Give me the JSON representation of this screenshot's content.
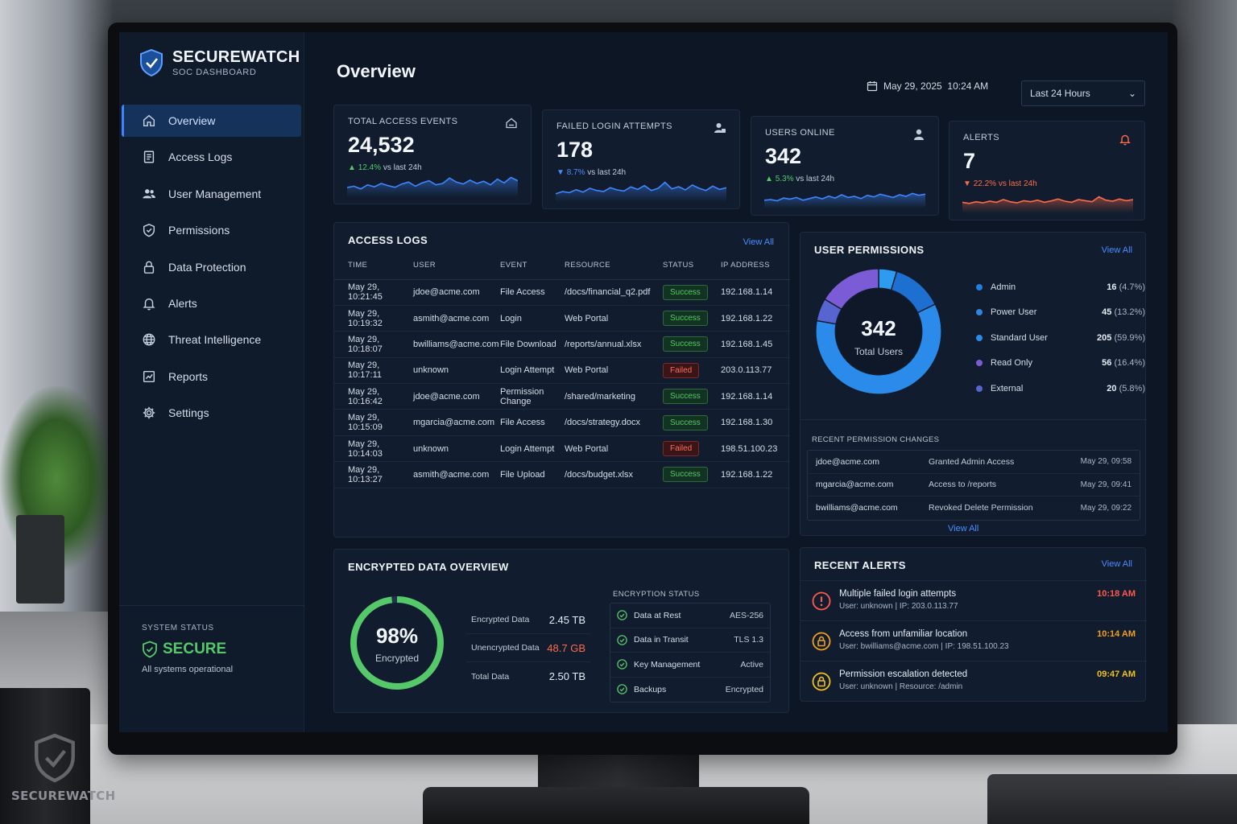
{
  "brand": {
    "title": "SECUREWATCH",
    "subtitle": "SOC DASHBOARD",
    "mug_text": "SECUREWATCH"
  },
  "sidebar": {
    "items": [
      {
        "label": "Overview",
        "icon": "home-icon",
        "active": true
      },
      {
        "label": "Access Logs",
        "icon": "document-icon"
      },
      {
        "label": "User Management",
        "icon": "users-icon"
      },
      {
        "label": "Permissions",
        "icon": "shield-icon"
      },
      {
        "label": "Data Protection",
        "icon": "lock-icon"
      },
      {
        "label": "Alerts",
        "icon": "bell-icon"
      },
      {
        "label": "Threat Intelligence",
        "icon": "globe-icon"
      },
      {
        "label": "Reports",
        "icon": "chart-icon"
      },
      {
        "label": "Settings",
        "icon": "gear-icon"
      }
    ],
    "system_status": {
      "label": "SYSTEM STATUS",
      "state": "SECURE",
      "note": "All systems operational"
    }
  },
  "header": {
    "title": "Overview",
    "date": "May 29, 2025",
    "time": "10:24 AM",
    "range": "Last 24 Hours"
  },
  "stats": [
    {
      "label": "TOTAL ACCESS EVENTS",
      "value": "24,532",
      "delta": "12.4%",
      "delta_suffix": "vs last 24h",
      "direction": "up",
      "icon": "home-icon",
      "spark_color": "#3d86ff",
      "spark": [
        0.35,
        0.4,
        0.3,
        0.45,
        0.38,
        0.5,
        0.42,
        0.36,
        0.48,
        0.55,
        0.4,
        0.52,
        0.6,
        0.45,
        0.5,
        0.7,
        0.55,
        0.48,
        0.62,
        0.5,
        0.58,
        0.45,
        0.66,
        0.52,
        0.72,
        0.6
      ]
    },
    {
      "label": "FAILED LOGIN ATTEMPTS",
      "value": "178",
      "delta": "8.7%",
      "delta_suffix": "vs last 24h",
      "direction": "down",
      "icon": "user-lock-icon",
      "spark_color": "#3d86ff",
      "spark": [
        0.3,
        0.38,
        0.34,
        0.45,
        0.36,
        0.5,
        0.42,
        0.38,
        0.52,
        0.44,
        0.4,
        0.55,
        0.46,
        0.6,
        0.42,
        0.5,
        0.72,
        0.48,
        0.56,
        0.44,
        0.62,
        0.5,
        0.42,
        0.58,
        0.46,
        0.52
      ]
    },
    {
      "label": "USERS ONLINE",
      "value": "342",
      "delta": "5.3%",
      "delta_suffix": "vs last 24h",
      "direction": "up",
      "icon": "user-icon",
      "spark_color": "#3d86ff",
      "spark": [
        0.3,
        0.32,
        0.28,
        0.38,
        0.34,
        0.4,
        0.3,
        0.36,
        0.42,
        0.35,
        0.45,
        0.38,
        0.5,
        0.4,
        0.44,
        0.36,
        0.48,
        0.42,
        0.52,
        0.46,
        0.4,
        0.5,
        0.44,
        0.55,
        0.48,
        0.52
      ]
    },
    {
      "label": "ALERTS",
      "value": "7",
      "delta": "22.2%",
      "delta_suffix": "vs last 24h",
      "direction": "down-red",
      "icon": "bell-icon",
      "spark_color": "#ff6b4a",
      "spark": [
        0.4,
        0.36,
        0.42,
        0.38,
        0.44,
        0.4,
        0.5,
        0.42,
        0.38,
        0.46,
        0.42,
        0.48,
        0.4,
        0.45,
        0.52,
        0.44,
        0.4,
        0.5,
        0.46,
        0.42,
        0.6,
        0.48,
        0.44,
        0.52,
        0.46,
        0.5
      ]
    }
  ],
  "access_logs": {
    "title": "ACCESS LOGS",
    "view_all": "View All",
    "columns": [
      "TIME",
      "USER",
      "EVENT",
      "RESOURCE",
      "STATUS",
      "IP ADDRESS"
    ],
    "rows": [
      {
        "time": "May 29, 10:21:45",
        "user": "jdoe@acme.com",
        "event": "File Access",
        "resource": "/docs/financial_q2.pdf",
        "status": "Success",
        "ip": "192.168.1.14"
      },
      {
        "time": "May 29, 10:19:32",
        "user": "asmith@acme.com",
        "event": "Login",
        "resource": "Web Portal",
        "status": "Success",
        "ip": "192.168.1.22"
      },
      {
        "time": "May 29, 10:18:07",
        "user": "bwilliams@acme.com",
        "event": "File Download",
        "resource": "/reports/annual.xlsx",
        "status": "Success",
        "ip": "192.168.1.45"
      },
      {
        "time": "May 29, 10:17:11",
        "user": "unknown",
        "event": "Login Attempt",
        "resource": "Web Portal",
        "status": "Failed",
        "ip": "203.0.113.77"
      },
      {
        "time": "May 29, 10:16:42",
        "user": "jdoe@acme.com",
        "event": "Permission Change",
        "resource": "/shared/marketing",
        "status": "Success",
        "ip": "192.168.1.14"
      },
      {
        "time": "May 29, 10:15:09",
        "user": "mgarcia@acme.com",
        "event": "File Access",
        "resource": "/docs/strategy.docx",
        "status": "Success",
        "ip": "192.168.1.30"
      },
      {
        "time": "May 29, 10:14:03",
        "user": "unknown",
        "event": "Login Attempt",
        "resource": "Web Portal",
        "status": "Failed",
        "ip": "198.51.100.23"
      },
      {
        "time": "May 29, 10:13:27",
        "user": "asmith@acme.com",
        "event": "File Upload",
        "resource": "/docs/budget.xlsx",
        "status": "Success",
        "ip": "192.168.1.22"
      }
    ]
  },
  "permissions": {
    "title": "USER PERMISSIONS",
    "view_all": "View All",
    "total": "342",
    "total_label": "Total Users",
    "groups": [
      {
        "name": "Admin",
        "count": "16",
        "pct": "(4.7%)",
        "value": 16,
        "color": "#1f7fe8"
      },
      {
        "name": "Power User",
        "count": "45",
        "pct": "(13.2%)",
        "value": 45,
        "color": "#2e86e0"
      },
      {
        "name": "Standard User",
        "count": "205",
        "pct": "(59.9%)",
        "value": 205,
        "color": "#2a8bea"
      },
      {
        "name": "Read Only",
        "count": "56",
        "pct": "(16.4%)",
        "value": 56,
        "color": "#7b5cd6"
      },
      {
        "name": "External",
        "count": "20",
        "pct": "(5.8%)",
        "value": 20,
        "color": "#5864cf"
      }
    ],
    "recent_label": "RECENT PERMISSION CHANGES",
    "recent": [
      {
        "user": "jdoe@acme.com",
        "action": "Granted Admin Access",
        "time": "May 29, 09:58"
      },
      {
        "user": "mgarcia@acme.com",
        "action": "Access to /reports",
        "time": "May 29, 09:41"
      },
      {
        "user": "bwilliams@acme.com",
        "action": "Revoked Delete Permission",
        "time": "May 29, 09:22"
      }
    ],
    "recent_view_all": "View All"
  },
  "encryption": {
    "title": "ENCRYPTED DATA OVERVIEW",
    "percent": "98%",
    "percent_value": 0.98,
    "percent_label": "Encrypted",
    "totals": [
      {
        "label": "Encrypted Data",
        "value": "2.45 TB",
        "highlight": false
      },
      {
        "label": "Unencrypted Data",
        "value": "48.7 GB",
        "highlight": true
      },
      {
        "label": "Total Data",
        "value": "2.50 TB",
        "highlight": false
      }
    ],
    "status_label": "ENCRYPTION STATUS",
    "status": [
      {
        "name": "Data at Rest",
        "value": "AES-256"
      },
      {
        "name": "Data in Transit",
        "value": "TLS 1.3"
      },
      {
        "name": "Key Management",
        "value": "Active"
      },
      {
        "name": "Backups",
        "value": "Encrypted"
      }
    ]
  },
  "alerts": {
    "title": "RECENT ALERTS",
    "view_all": "View All",
    "items": [
      {
        "title": "Multiple failed login attempts",
        "sub": "User: unknown  |  IP: 203.0.113.77",
        "time": "10:18 AM",
        "severity": "critical",
        "color": "#ff5a4a",
        "icon": "exclamation-icon"
      },
      {
        "title": "Access from unfamiliar location",
        "sub": "User: bwilliams@acme.com  |  IP: 198.51.100.23",
        "time": "10:14 AM",
        "severity": "warning",
        "color": "#f0a020",
        "icon": "lock-icon"
      },
      {
        "title": "Permission escalation detected",
        "sub": "User: unknown  |  Resource: /admin",
        "time": "09:47 AM",
        "severity": "warning",
        "color": "#f0c020",
        "icon": "lock-icon"
      }
    ]
  }
}
